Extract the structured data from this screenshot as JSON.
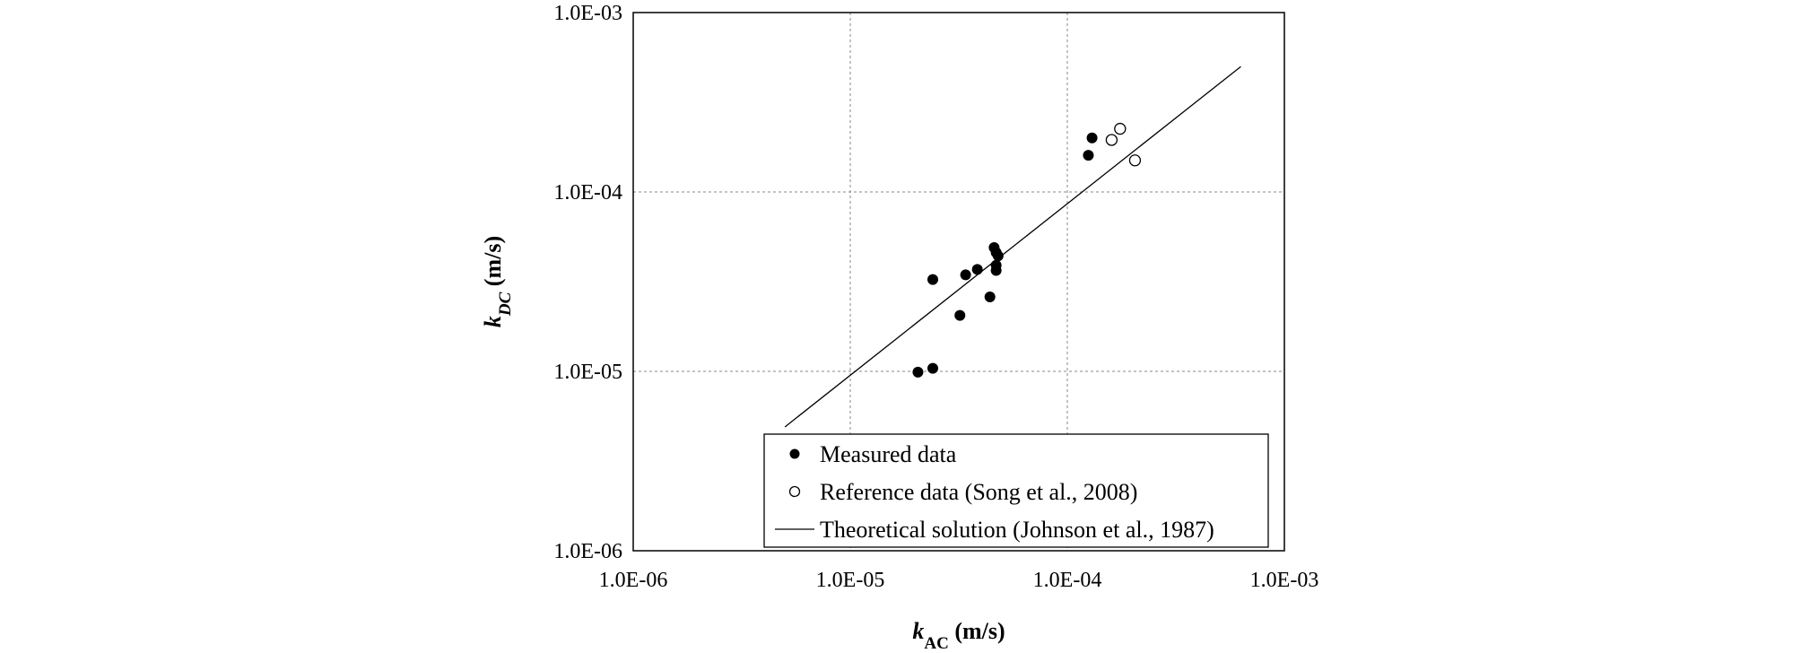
{
  "chart_data": {
    "type": "scatter",
    "x_scale": "log",
    "y_scale": "log",
    "xlim": [
      1e-06,
      0.001
    ],
    "ylim": [
      1e-06,
      0.001
    ],
    "grid": true,
    "legend_position": "bottom-right",
    "xlabel": {
      "main": "k",
      "sub": "AC",
      "unit": " (m/s)"
    },
    "ylabel": {
      "main": "k",
      "sub": "DC",
      "unit": " (m/s)"
    },
    "x_ticks": [
      {
        "value": 1e-06,
        "label": "1.0E-06"
      },
      {
        "value": 1e-05,
        "label": "1.0E-05"
      },
      {
        "value": 0.0001,
        "label": "1.0E-04"
      },
      {
        "value": 0.001,
        "label": "1.0E-03"
      }
    ],
    "y_ticks": [
      {
        "value": 1e-06,
        "label": "1.0E-06"
      },
      {
        "value": 1e-05,
        "label": "1.0E-05"
      },
      {
        "value": 0.0001,
        "label": "1.0E-04"
      },
      {
        "value": 0.001,
        "label": "1.0E-03"
      }
    ],
    "series": [
      {
        "name": "Measured data",
        "marker": "filled-circle",
        "color": "#000000",
        "points": [
          {
            "x": 2.05e-05,
            "y": 9.9e-06
          },
          {
            "x": 2.4e-05,
            "y": 1.04e-05
          },
          {
            "x": 2.4e-05,
            "y": 3.25e-05
          },
          {
            "x": 3.2e-05,
            "y": 2.05e-05
          },
          {
            "x": 3.4e-05,
            "y": 3.45e-05
          },
          {
            "x": 3.85e-05,
            "y": 3.7e-05
          },
          {
            "x": 4.4e-05,
            "y": 2.6e-05
          },
          {
            "x": 4.6e-05,
            "y": 4.9e-05
          },
          {
            "x": 4.7e-05,
            "y": 4.6e-05
          },
          {
            "x": 4.8e-05,
            "y": 4.4e-05
          },
          {
            "x": 4.7e-05,
            "y": 3.9e-05
          },
          {
            "x": 4.7e-05,
            "y": 3.65e-05
          },
          {
            "x": 0.000125,
            "y": 0.00016
          },
          {
            "x": 0.00013,
            "y": 0.0002
          }
        ]
      },
      {
        "name": "Reference data (Song et al., 2008)",
        "marker": "open-circle",
        "color": "#000000",
        "points": [
          {
            "x": 0.00016,
            "y": 0.000195
          },
          {
            "x": 0.000175,
            "y": 0.000225
          },
          {
            "x": 0.000205,
            "y": 0.00015
          }
        ]
      },
      {
        "name": "Theoretical solution (Johnson et al., 1987)",
        "marker": "line",
        "color": "#000000",
        "line": [
          {
            "x": 5e-06,
            "y": 4.9e-06
          },
          {
            "x": 0.00063,
            "y": 0.0005
          }
        ]
      }
    ]
  }
}
